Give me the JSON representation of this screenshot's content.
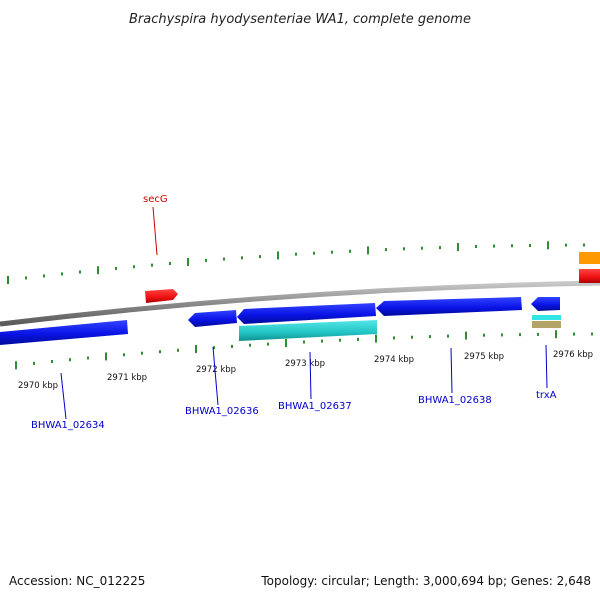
{
  "title": "Brachyspira hyodysenteriae WA1, complete genome",
  "footer": {
    "accession": "Accession: NC_012225",
    "summary": "Topology: circular; Length: 3,000,694 bp; Genes: 2,648"
  },
  "ticks": [
    {
      "label": "2970 kbp"
    },
    {
      "label": "2971 kbp"
    },
    {
      "label": "2972 kbp"
    },
    {
      "label": "2973 kbp"
    },
    {
      "label": "2974 kbp"
    },
    {
      "label": "2975 kbp"
    },
    {
      "label": "2976 kbp"
    }
  ],
  "genes": [
    {
      "label": "BHWA1_02634",
      "color": "#0000cc"
    },
    {
      "label": "BHWA1_02636",
      "color": "#0000cc"
    },
    {
      "label": "BHWA1_02637",
      "color": "#0000cc"
    },
    {
      "label": "BHWA1_02638",
      "color": "#0000cc"
    },
    {
      "label": "trxA",
      "color": "#0000cc"
    },
    {
      "label": "secG",
      "color": "#cc0000"
    }
  ],
  "colors": {
    "backbone": "#8a8a8a",
    "tick": "#2f8f2f",
    "cds_forward": "#0a14e6",
    "cds_other": "#22cccc",
    "rna": "#ee1111",
    "misc_orange": "#ff9900",
    "misc_tan": "#b5a46a"
  }
}
